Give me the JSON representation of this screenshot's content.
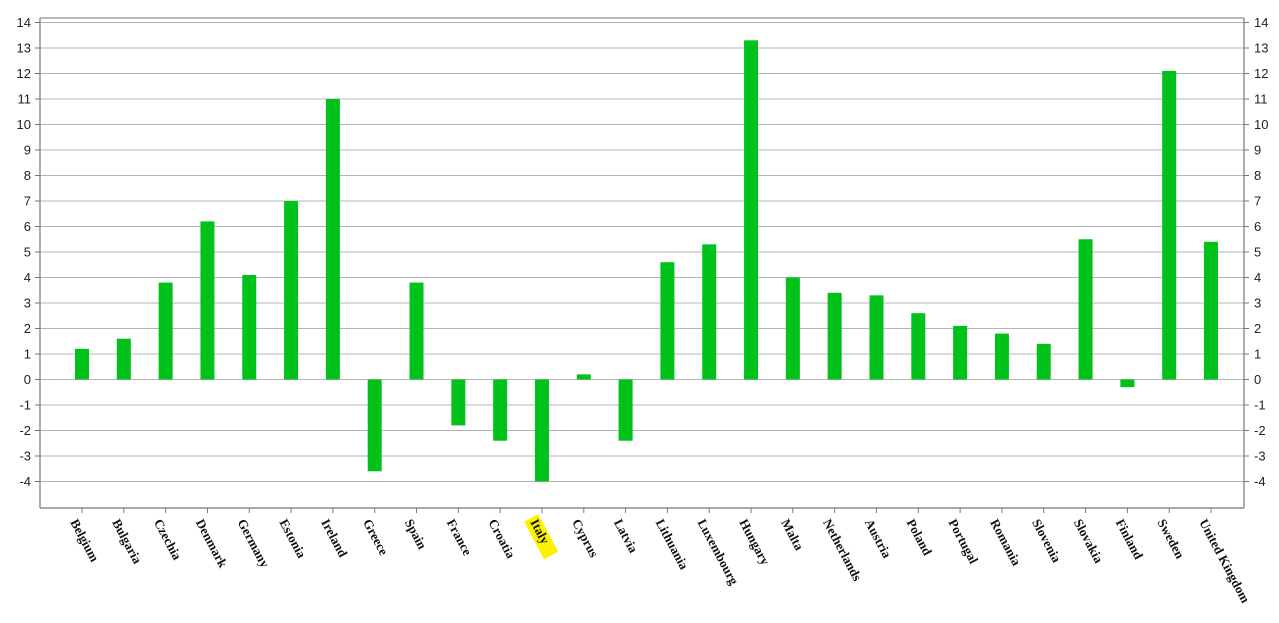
{
  "chart_data": {
    "type": "bar",
    "title": "",
    "xlabel": "",
    "ylabel": "",
    "ylim": [
      -5,
      14
    ],
    "y_ticks": [
      "-4",
      "-3",
      "-2",
      "-1",
      "0",
      "1",
      "2",
      "3",
      "4",
      "5",
      "6",
      "7",
      "8",
      "9",
      "10",
      "11",
      "12",
      "13",
      "14"
    ],
    "grid": true,
    "highlighted_category": "Italy",
    "colors": {
      "bar": "#00C21A",
      "highlight": "#FFF200",
      "grid": "#B4B4B4",
      "axis": "#777777"
    },
    "categories": [
      "Belgium",
      "Bulgaria",
      "Czechia",
      "Denmark",
      "Germany",
      "Estonia",
      "Ireland",
      "Greece",
      "Spain",
      "France",
      "Croatia",
      "Italy",
      "Cyprus",
      "Latvia",
      "Lithuania",
      "Luxembourg",
      "Hungary",
      "Malta",
      "Netherlands",
      "Austria",
      "Poland",
      "Portugal",
      "Romania",
      "Slovenia",
      "Slovakia",
      "Finland",
      "Sweden",
      "United Kingdom"
    ],
    "values": [
      1.2,
      1.6,
      3.8,
      6.2,
      4.1,
      7.0,
      11.0,
      -3.6,
      3.8,
      -1.8,
      -2.4,
      -4.0,
      0.2,
      -2.4,
      4.6,
      5.3,
      13.3,
      4.0,
      3.4,
      3.3,
      2.6,
      2.1,
      1.8,
      1.4,
      5.5,
      -0.3,
      12.1,
      5.4
    ]
  }
}
